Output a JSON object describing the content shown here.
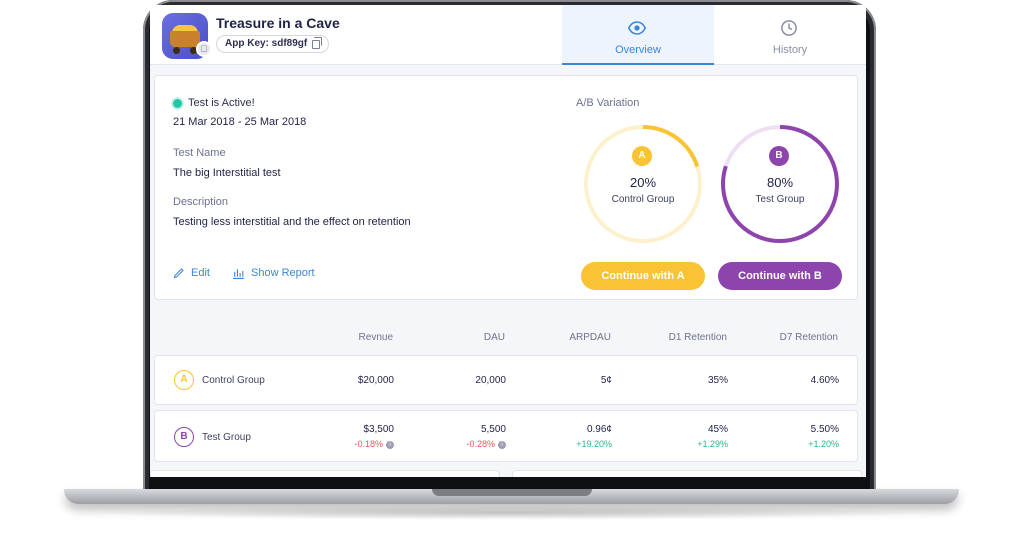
{
  "app": {
    "title": "Treasure in a Cave",
    "app_key_label": "App Key: sdf89gf"
  },
  "tabs": [
    {
      "label": "Overview",
      "icon": "eye-icon",
      "active": true
    },
    {
      "label": "History",
      "icon": "clock-icon",
      "active": false
    }
  ],
  "test": {
    "status": "Test is Active!",
    "dates": "21 Mar 2018 - 25 Mar 2018",
    "name_label": "Test Name",
    "name_value": "The big Interstitial test",
    "desc_label": "Description",
    "desc_value": "Testing less interstitial and the effect on retention",
    "edit_label": "Edit",
    "report_label": "Show Report"
  },
  "ab": {
    "title": "A/B Variation",
    "a": {
      "badge": "A",
      "percent": "20%",
      "group": "Control Group",
      "share": 0.2,
      "color": "#f9c335",
      "button": "Continue with A"
    },
    "b": {
      "badge": "B",
      "percent": "80%",
      "group": "Test Group",
      "share": 0.8,
      "color": "#8e44ad",
      "button": "Continue with B"
    }
  },
  "table": {
    "headers": [
      "Revnue",
      "DAU",
      "ARPDAU",
      "D1 Retention",
      "D7 Retention"
    ],
    "rows": [
      {
        "badge": "A",
        "group": "Control Group",
        "values": [
          "$20,000",
          "20,000",
          "5¢",
          "35%",
          "4.60%"
        ],
        "deltas": []
      },
      {
        "badge": "B",
        "group": "Test Group",
        "values": [
          "$3,500",
          "5,500",
          "0.96¢",
          "45%",
          "5.50%"
        ],
        "deltas": [
          "-0.18%",
          "-0.28%",
          "+19.20%",
          "+1.29%",
          "+1.20%"
        ]
      }
    ]
  },
  "colors": {
    "accent": "#3a86d6",
    "active": "#22c7a9",
    "negative": "#e9585b",
    "positive": "#22b98f"
  }
}
